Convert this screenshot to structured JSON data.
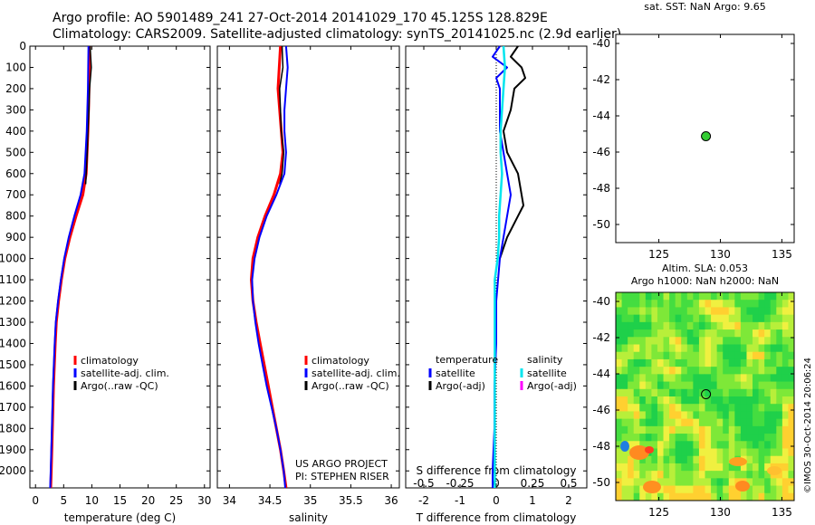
{
  "header": {
    "line1": "Argo profile: AO 5901489_241 27-Oct-2014 20141029_170 45.125S 128.829E",
    "line2": "Climatology: CARS2009. Satellite-adjusted climatology: synTS_20141025.nc (2.9d earlier)"
  },
  "side_label": "©IMOS 30-Oct-2014 20:06:24",
  "colors": {
    "climatology": "#ff0000",
    "satellite": "#0000ff",
    "argo": "#000000",
    "satellite_s": "#00e5ee",
    "argo_s": "#ff00ff"
  },
  "chart_data": [
    {
      "type": "line",
      "xlabel": "temperature (deg C)",
      "ylim": [
        2080,
        0
      ],
      "xlim": [
        -1,
        31
      ],
      "xticks": [
        0,
        5,
        10,
        15,
        20,
        25,
        30
      ],
      "yticks": [
        0,
        100,
        200,
        300,
        400,
        500,
        600,
        700,
        800,
        900,
        1000,
        1100,
        1200,
        1300,
        1400,
        1500,
        1600,
        1700,
        1800,
        1900,
        2000
      ],
      "legend": {
        "position": "bottom-center",
        "entries": [
          "climatology",
          "satellite-adj. clim.",
          "Argo(..raw -QC)"
        ]
      },
      "series": [
        {
          "name": "climatology",
          "color": "#ff0000",
          "depth": [
            0,
            200,
            400,
            600,
            700,
            800,
            900,
            1000,
            1100,
            1200,
            1300,
            1400,
            1600,
            1800,
            2000,
            2080
          ],
          "values": [
            9.6,
            9.5,
            9.3,
            9.0,
            8.4,
            7.2,
            6.1,
            5.2,
            4.6,
            4.1,
            3.7,
            3.5,
            3.2,
            3.0,
            2.8,
            2.7
          ]
        },
        {
          "name": "satellite-adj. clim.",
          "color": "#0000ff",
          "depth": [
            0,
            200,
            400,
            600,
            700,
            800,
            900,
            1000,
            1100,
            1200,
            1300,
            1400,
            1600,
            1800,
            2000,
            2080
          ],
          "values": [
            9.4,
            9.3,
            9.1,
            8.7,
            8.0,
            6.9,
            5.9,
            5.1,
            4.5,
            4.0,
            3.6,
            3.4,
            3.1,
            2.9,
            2.7,
            2.6
          ]
        },
        {
          "name": "Argo(..raw -QC)",
          "color": "#000000",
          "depth": [
            0,
            100,
            200,
            300,
            400,
            500,
            600,
            650
          ],
          "values": [
            9.7,
            9.9,
            9.6,
            9.5,
            9.3,
            9.2,
            9.0,
            8.9
          ]
        }
      ]
    },
    {
      "type": "line",
      "xlabel": "salinity",
      "ylim": [
        2080,
        0
      ],
      "xlim": [
        33.85,
        36.1
      ],
      "xticks": [
        34,
        34.5,
        35,
        35.5,
        36
      ],
      "xticklabels": [
        "34",
        "34.5",
        "35",
        "35.5",
        "36"
      ],
      "legend": {
        "position": "bottom-center",
        "entries": [
          "climatology",
          "satellite-adj. clim.",
          "Argo(..raw -QC)"
        ]
      },
      "annotation": [
        "US ARGO PROJECT",
        "PI: STEPHEN RISER"
      ],
      "series": [
        {
          "name": "climatology",
          "color": "#ff0000",
          "depth": [
            0,
            200,
            400,
            500,
            600,
            700,
            800,
            900,
            1000,
            1100,
            1200,
            1300,
            1400,
            1500,
            1600,
            1700,
            1800,
            1900,
            2000,
            2080
          ],
          "values": [
            34.63,
            34.6,
            34.64,
            34.66,
            34.63,
            34.55,
            34.44,
            34.35,
            34.29,
            34.27,
            34.29,
            34.33,
            34.38,
            34.43,
            34.48,
            34.53,
            34.58,
            34.63,
            34.67,
            34.7
          ]
        },
        {
          "name": "satellite-adj. clim.",
          "color": "#0000ff",
          "depth": [
            0,
            100,
            200,
            300,
            400,
            500,
            600,
            700,
            800,
            900,
            1000,
            1100,
            1200,
            1300,
            1400,
            1500,
            1600,
            1700,
            1800,
            1900,
            2000,
            2080
          ],
          "values": [
            34.7,
            34.72,
            34.7,
            34.68,
            34.68,
            34.7,
            34.68,
            34.58,
            34.46,
            34.37,
            34.31,
            34.28,
            34.29,
            34.32,
            34.36,
            34.41,
            34.46,
            34.52,
            34.58,
            34.63,
            34.67,
            34.69
          ]
        },
        {
          "name": "Argo(..raw -QC)",
          "color": "#000000",
          "depth": [
            0,
            100,
            200,
            300,
            400,
            500,
            600,
            650
          ],
          "values": [
            34.65,
            34.66,
            34.62,
            34.63,
            34.64,
            34.67,
            34.65,
            34.62
          ]
        }
      ]
    },
    {
      "type": "line",
      "xlabel": "T difference from climatology",
      "xlabel2": "S difference from climatology",
      "ylim": [
        2080,
        0
      ],
      "xlim": [
        -2.5,
        2.5
      ],
      "xticks": [
        -2,
        -1,
        0,
        1,
        2
      ],
      "xticks2": [
        -0.5,
        -0.25,
        0,
        0.25,
        0.5
      ],
      "legend": {
        "position": "bottom",
        "groups": [
          "temperature",
          "salinity"
        ],
        "entries": [
          "satellite",
          "Argo(-adj)",
          "satellite",
          "Argo(-adj)"
        ]
      },
      "series": [
        {
          "name": "T satellite",
          "color": "#0000ff",
          "depth": [
            0,
            50,
            100,
            150,
            200,
            300,
            400,
            500,
            600,
            700,
            800,
            900,
            1000,
            1200,
            1400,
            1600,
            1800,
            2000,
            2080
          ],
          "values": [
            0.1,
            -0.1,
            0.3,
            0.0,
            0.1,
            0.1,
            0.1,
            0.2,
            0.3,
            0.4,
            0.3,
            0.2,
            0.1,
            0.0,
            0.0,
            -0.05,
            -0.05,
            -0.1,
            -0.1
          ]
        },
        {
          "name": "T Argo(-adj)",
          "color": "#000000",
          "depth": [
            0,
            50,
            100,
            150,
            200,
            300,
            400,
            500,
            600,
            700,
            750,
            800,
            900,
            1000
          ],
          "values": [
            0.6,
            0.4,
            0.7,
            0.8,
            0.5,
            0.4,
            0.2,
            0.3,
            0.6,
            0.7,
            0.75,
            0.6,
            0.3,
            0.1
          ]
        },
        {
          "name": "S satellite",
          "color": "#00e5ee",
          "depth": [
            0,
            100,
            200,
            300,
            400,
            500,
            600,
            700,
            800,
            900,
            1000,
            1100,
            1200,
            1400,
            1600,
            1800,
            2000,
            2080
          ],
          "values": [
            0.05,
            0.06,
            0.05,
            0.04,
            0.03,
            0.03,
            0.04,
            0.03,
            0.02,
            0.02,
            0.01,
            -0.01,
            -0.01,
            -0.01,
            -0.01,
            -0.01,
            -0.01,
            -0.01
          ]
        },
        {
          "name": "S Argo(-adj)",
          "color": "#ff00ff",
          "depth": [],
          "values": []
        }
      ]
    },
    {
      "type": "scatter",
      "title": "sat. SST: NaN Argo: 9.65",
      "xlim": [
        121.5,
        136
      ],
      "ylim": [
        -51,
        -39.5
      ],
      "xticks": [
        125,
        130,
        135
      ],
      "yticks": [
        -40,
        -42,
        -44,
        -46,
        -48,
        -50
      ],
      "points": [
        {
          "x": 128.83,
          "y": -45.125,
          "color": "#33cc33"
        }
      ]
    },
    {
      "type": "heatmap",
      "title": "Altim. SLA: 0.053",
      "subtitle": "Argo h1000: NaN h2000: NaN",
      "xlim": [
        121.5,
        136
      ],
      "ylim": [
        -51,
        -39.5
      ],
      "xticks": [
        125,
        130,
        135
      ],
      "yticks": [
        -40,
        -42,
        -44,
        -46,
        -48,
        -50
      ],
      "points": [
        {
          "x": 128.83,
          "y": -45.125
        }
      ]
    }
  ]
}
